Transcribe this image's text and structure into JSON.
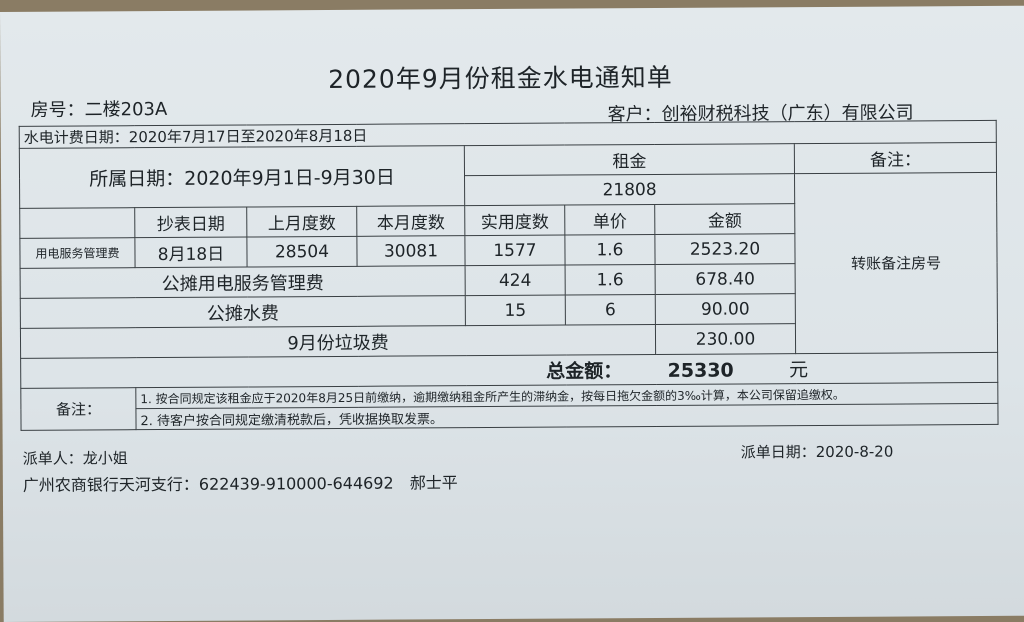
{
  "title": "2020年9月份租金水电通知单",
  "room": "房号：二楼203A",
  "client": "客户：创裕财税科技（广东）有限公司",
  "billing_period": "水电计费日期：2020年7月17日至2020年8月18日",
  "period": "所属日期：2020年9月1日-9月30日",
  "rent_label": "租金",
  "rent_value": "21808",
  "remark_label": "备注：",
  "remark_value": "转账备注房号",
  "headers": [
    "抄表日期",
    "上月度数",
    "本月度数",
    "实用度数",
    "单价",
    "金额"
  ],
  "electric": {
    "label": "用电服务管理费",
    "date": "8月18日",
    "prev": "28504",
    "curr": "30081",
    "used": "1577",
    "price": "1.6",
    "amount": "2523.20"
  },
  "shared_electric": {
    "label": "公摊用电服务管理费",
    "used": "424",
    "price": "1.6",
    "amount": "678.40"
  },
  "shared_water": {
    "label": "公摊水费",
    "used": "15",
    "price": "6",
    "amount": "90.00"
  },
  "garbage": {
    "label": "9月份垃圾费",
    "amount": "230.00"
  },
  "total": {
    "label": "总金额：",
    "value": "25330",
    "unit": "元"
  },
  "notes_label": "备注：",
  "notes": [
    "1. 按合同规定该租金应于2020年8月25日前缴纳，逾期缴纳租金所产生的滞纳金，按每日拖欠金额的3‰计算，本公司保留追缴权。",
    "2. 待客户按合同规定缴清税款后，凭收据换取发票。"
  ],
  "sender": "派单人：龙小姐",
  "send_date": "派单日期：2020-8-20",
  "bank": "广州农商银行天河支行：622439-910000-644692　郝士平"
}
